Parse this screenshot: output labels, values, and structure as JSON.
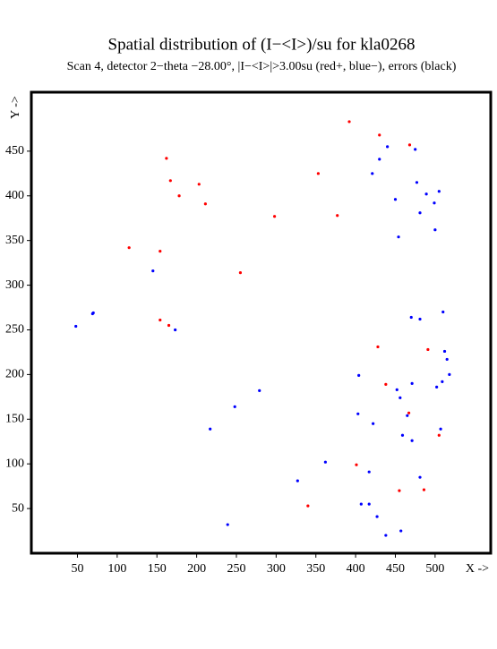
{
  "chart_data": {
    "type": "scatter",
    "title": "Spatial distribution of (I−<I>)/su for kla0268",
    "subtitle": "Scan  4, detector 2−theta −28.00°, |I−<I>|>3.00su (red+, blue−), errors (black)",
    "x_label": "X ->",
    "y_label": "Y ->",
    "xlim": [
      -8,
      570
    ],
    "ylim": [
      0,
      516
    ],
    "xticks": [
      50,
      100,
      150,
      200,
      250,
      300,
      350,
      400,
      450,
      500
    ],
    "yticks": [
      50,
      100,
      150,
      200,
      250,
      300,
      350,
      400,
      450
    ],
    "series": [
      {
        "color": "#ff0000",
        "x": [
          392,
          430,
          468,
          162,
          167,
          178,
          203,
          211,
          353,
          298,
          377,
          115,
          154,
          255,
          154,
          165,
          428,
          491,
          438,
          467,
          505,
          401,
          340,
          455,
          486
        ],
        "values": [
          483,
          468,
          457,
          442,
          417,
          400,
          413,
          391,
          425,
          377,
          378,
          342,
          338,
          314,
          261,
          255,
          231,
          228,
          189,
          157,
          132,
          99,
          53,
          70,
          71
        ]
      },
      {
        "color": "#0000ff",
        "x": [
          440,
          475,
          430,
          421,
          477,
          489,
          505,
          450,
          499,
          481,
          500,
          454,
          145,
          69,
          70,
          48,
          173,
          470,
          481,
          510,
          512,
          515,
          518,
          509,
          502,
          404,
          452,
          471,
          456,
          279,
          248,
          403,
          465,
          422,
          217,
          459,
          507,
          471,
          362,
          417,
          327,
          481,
          407,
          417,
          427,
          457,
          438,
          239
        ],
        "values": [
          455,
          452,
          441,
          425,
          415,
          402,
          405,
          396,
          392,
          381,
          362,
          354,
          316,
          268,
          269,
          254,
          250,
          264,
          262,
          270,
          226,
          217,
          200,
          192,
          186,
          199,
          183,
          190,
          174,
          182,
          164,
          156,
          154,
          145,
          139,
          132,
          139,
          126,
          102,
          91,
          81,
          85,
          55,
          55,
          41,
          25,
          20,
          32
        ]
      }
    ]
  }
}
